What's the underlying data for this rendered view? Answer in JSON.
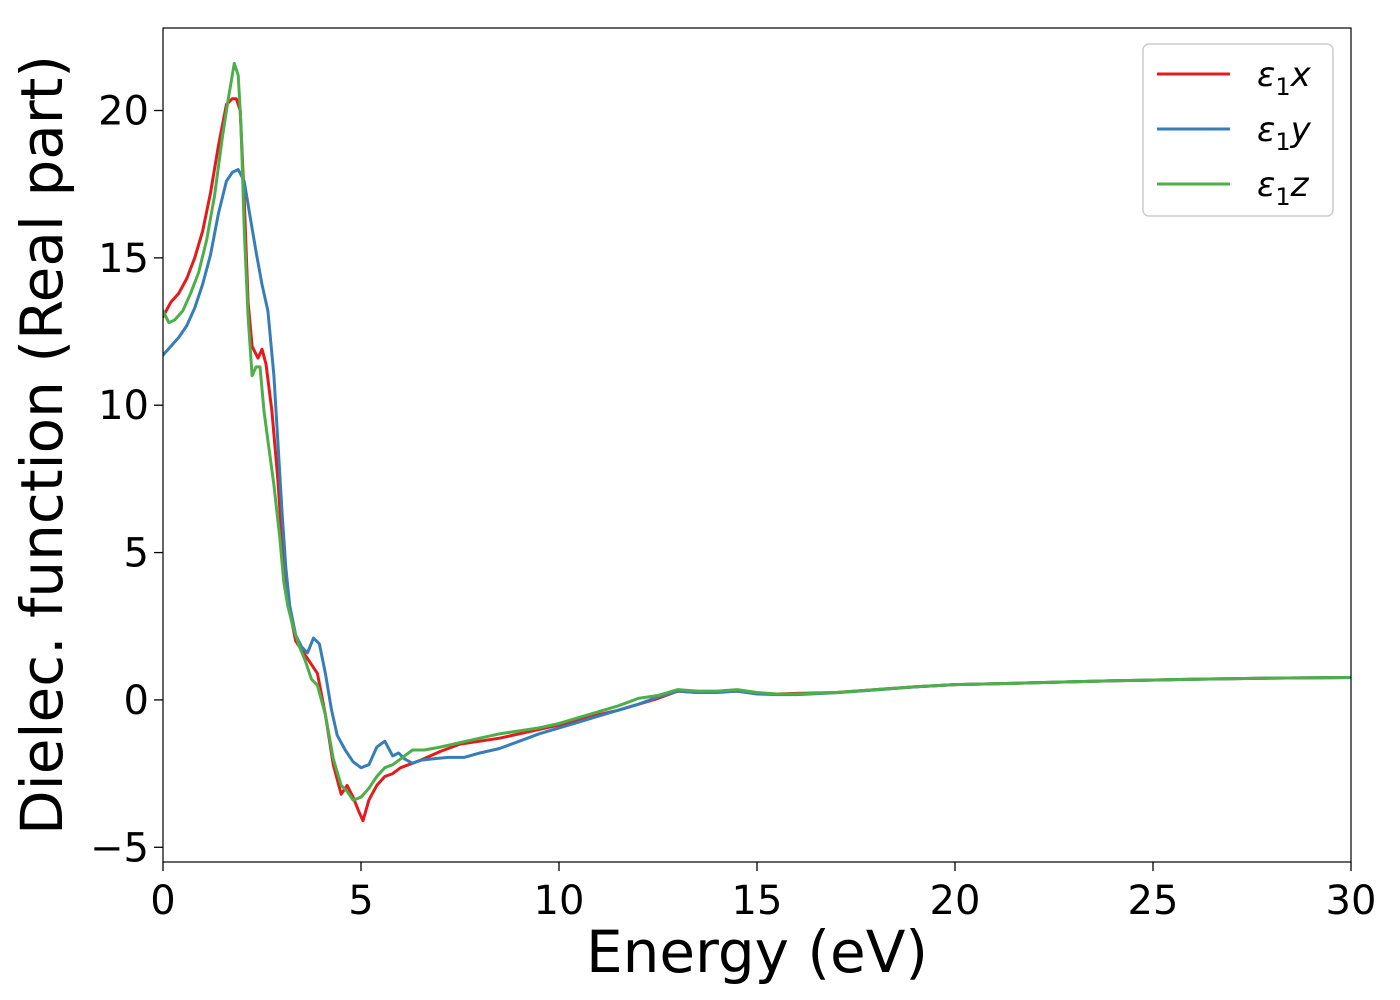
{
  "chart_data": {
    "type": "line",
    "xlabel": "Energy (eV)",
    "ylabel": "Dielec. function (Real part)",
    "xlim": [
      0,
      30
    ],
    "ylim": [
      -5.5,
      22.8
    ],
    "xticks": [
      0,
      5,
      10,
      15,
      20,
      25,
      30
    ],
    "yticks": [
      -5,
      0,
      5,
      10,
      15,
      20
    ],
    "xtick_labels": [
      "0",
      "5",
      "10",
      "15",
      "20",
      "25",
      "30"
    ],
    "ytick_labels": [
      "−5",
      "0",
      "5",
      "10",
      "15",
      "20"
    ],
    "grid": false,
    "legend_position": "top-right",
    "series": [
      {
        "name": "ε1x",
        "legend_base": "ε",
        "legend_sub": "1",
        "legend_var": "x",
        "color": "#e41a1c",
        "x": [
          0,
          0.2,
          0.4,
          0.6,
          0.8,
          1.0,
          1.2,
          1.4,
          1.6,
          1.75,
          1.85,
          1.95,
          2.05,
          2.15,
          2.25,
          2.4,
          2.5,
          2.6,
          2.75,
          2.9,
          3.0,
          3.1,
          3.2,
          3.35,
          3.5,
          3.7,
          3.9,
          4.1,
          4.3,
          4.5,
          4.65,
          4.8,
          4.95,
          5.05,
          5.2,
          5.4,
          5.6,
          5.8,
          6.0,
          6.5,
          7.0,
          7.5,
          8.0,
          8.5,
          9.0,
          9.5,
          10.0,
          10.5,
          11.0,
          11.5,
          12.0,
          12.5,
          13.0,
          13.5,
          14.0,
          14.5,
          15.0,
          15.5,
          16.0,
          17.0,
          18.0,
          19.0,
          20.0,
          22.0,
          24.0,
          26.0,
          28.0,
          30.0
        ],
        "values": [
          13.0,
          13.5,
          13.8,
          14.3,
          15.0,
          15.9,
          17.2,
          18.8,
          20.2,
          20.4,
          20.4,
          20.0,
          17.0,
          13.5,
          12.0,
          11.6,
          11.9,
          11.4,
          9.8,
          7.5,
          5.5,
          3.7,
          3.0,
          2.0,
          1.7,
          1.3,
          0.9,
          -0.5,
          -2.2,
          -3.2,
          -2.9,
          -3.3,
          -3.8,
          -4.1,
          -3.4,
          -2.9,
          -2.6,
          -2.5,
          -2.3,
          -2.05,
          -1.75,
          -1.5,
          -1.4,
          -1.3,
          -1.15,
          -1.0,
          -0.85,
          -0.7,
          -0.5,
          -0.35,
          -0.15,
          0.05,
          0.3,
          0.25,
          0.28,
          0.3,
          0.22,
          0.2,
          0.22,
          0.25,
          0.35,
          0.45,
          0.52,
          0.58,
          0.65,
          0.7,
          0.74,
          0.76
        ]
      },
      {
        "name": "ε1y",
        "legend_base": "ε",
        "legend_sub": "1",
        "legend_var": "y",
        "color": "#377eb8",
        "x": [
          0,
          0.2,
          0.4,
          0.6,
          0.8,
          1.0,
          1.2,
          1.4,
          1.6,
          1.75,
          1.9,
          2.05,
          2.2,
          2.35,
          2.5,
          2.65,
          2.8,
          2.9,
          3.0,
          3.1,
          3.2,
          3.35,
          3.5,
          3.65,
          3.8,
          3.95,
          4.1,
          4.25,
          4.4,
          4.6,
          4.8,
          5.0,
          5.2,
          5.4,
          5.6,
          5.8,
          5.95,
          6.1,
          6.3,
          6.5,
          6.8,
          7.2,
          7.6,
          8.0,
          8.5,
          9.0,
          9.5,
          10.0,
          10.5,
          11.0,
          11.5,
          12.0,
          12.5,
          13.0,
          13.5,
          14.0,
          14.5,
          15.0,
          15.5,
          16.0,
          17.0,
          18.0,
          19.0,
          20.0,
          22.0,
          24.0,
          26.0,
          28.0,
          30.0
        ],
        "values": [
          11.7,
          12.0,
          12.3,
          12.7,
          13.3,
          14.1,
          15.1,
          16.5,
          17.6,
          17.9,
          18.0,
          17.6,
          16.4,
          15.2,
          14.1,
          13.2,
          11.0,
          8.8,
          6.5,
          4.5,
          3.2,
          2.2,
          1.8,
          1.6,
          2.1,
          1.9,
          0.9,
          -0.3,
          -1.2,
          -1.7,
          -2.1,
          -2.3,
          -2.2,
          -1.6,
          -1.4,
          -1.9,
          -1.8,
          -2.0,
          -2.15,
          -2.05,
          -2.0,
          -1.95,
          -1.95,
          -1.8,
          -1.65,
          -1.4,
          -1.15,
          -0.95,
          -0.75,
          -0.55,
          -0.35,
          -0.15,
          0.1,
          0.3,
          0.25,
          0.25,
          0.3,
          0.2,
          0.18,
          0.18,
          0.24,
          0.34,
          0.44,
          0.52,
          0.58,
          0.65,
          0.7,
          0.74,
          0.76
        ]
      },
      {
        "name": "ε1z",
        "legend_base": "ε",
        "legend_sub": "1",
        "legend_var": "z",
        "color": "#4daf4a",
        "x": [
          0,
          0.15,
          0.3,
          0.5,
          0.7,
          0.9,
          1.1,
          1.3,
          1.5,
          1.65,
          1.8,
          1.9,
          1.97,
          2.05,
          2.15,
          2.25,
          2.35,
          2.45,
          2.55,
          2.65,
          2.8,
          2.95,
          3.05,
          3.15,
          3.3,
          3.45,
          3.6,
          3.75,
          3.9,
          4.1,
          4.3,
          4.5,
          4.65,
          4.8,
          5.0,
          5.2,
          5.4,
          5.6,
          5.8,
          6.0,
          6.3,
          6.6,
          7.0,
          7.5,
          8.0,
          8.5,
          9.0,
          9.5,
          10.0,
          10.5,
          11.0,
          11.5,
          12.0,
          12.5,
          13.0,
          13.5,
          14.0,
          14.5,
          15.0,
          15.5,
          16.0,
          17.0,
          18.0,
          19.0,
          20.0,
          22.0,
          24.0,
          26.0,
          28.0,
          30.0
        ],
        "values": [
          13.2,
          12.8,
          12.9,
          13.2,
          13.8,
          14.5,
          15.6,
          17.1,
          19.1,
          20.4,
          21.6,
          21.2,
          19.5,
          16.0,
          13.0,
          11.0,
          11.3,
          11.3,
          9.8,
          8.8,
          7.3,
          5.5,
          4.0,
          3.2,
          2.4,
          1.8,
          1.3,
          0.7,
          0.5,
          -0.5,
          -2.0,
          -2.9,
          -3.1,
          -3.4,
          -3.3,
          -3.0,
          -2.6,
          -2.3,
          -2.2,
          -2.0,
          -1.7,
          -1.7,
          -1.6,
          -1.45,
          -1.3,
          -1.15,
          -1.05,
          -0.95,
          -0.8,
          -0.6,
          -0.4,
          -0.2,
          0.05,
          0.15,
          0.35,
          0.3,
          0.3,
          0.35,
          0.25,
          0.2,
          0.2,
          0.25,
          0.35,
          0.45,
          0.52,
          0.58,
          0.65,
          0.7,
          0.74,
          0.76
        ]
      }
    ]
  }
}
